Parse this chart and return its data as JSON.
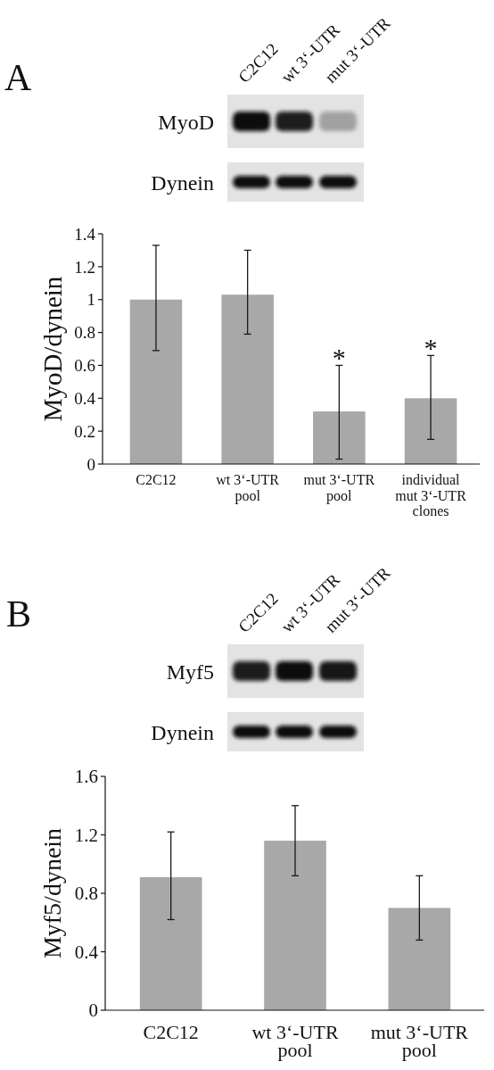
{
  "chart_data": [
    {
      "type": "bar",
      "title": "A",
      "ylabel": "MyoD/dynein",
      "categories": [
        "C2C12",
        "wt 3‘-UTR\npool",
        "mut 3‘-UTR\npool",
        "individual\nmut 3‘-UTR\nclones"
      ],
      "values": [
        1.0,
        1.03,
        0.32,
        0.4
      ],
      "errors": [
        [
          0.69,
          1.33
        ],
        [
          0.79,
          1.3
        ],
        [
          0.03,
          0.6
        ],
        [
          0.15,
          0.66
        ]
      ],
      "color": "#a8a8a8",
      "ylim": [
        0,
        1.4
      ],
      "yticks": [
        0,
        0.2,
        0.4,
        0.6,
        0.8,
        1,
        1.2,
        1.4
      ],
      "annotations": [
        "C2C12",
        "wt 3‘-UTR",
        "mut 3‘-UTR",
        "MyoD",
        "Dynein",
        {
          "text": "*",
          "x": "mut 3‘-UTR\npool",
          "y": 0.6
        },
        {
          "text": "*",
          "x": "individual\nmut 3‘-UTR\nclones",
          "y": 0.66
        }
      ]
    },
    {
      "type": "bar",
      "title": "B",
      "ylabel": "Myf5/dynein",
      "categories": [
        "C2C12",
        "wt 3‘-UTR\npool",
        "mut 3‘-UTR\npool"
      ],
      "values": [
        0.91,
        1.16,
        0.7
      ],
      "errors": [
        [
          0.62,
          1.22
        ],
        [
          0.92,
          1.4
        ],
        [
          0.48,
          0.92
        ]
      ],
      "color": "#a8a8a8",
      "ylim": [
        0,
        1.6
      ],
      "yticks": [
        0,
        0.4,
        0.8,
        1.2,
        1.6
      ],
      "annotations": [
        "C2C12",
        "wt 3‘-UTR",
        "mut 3‘-UTR",
        "Myf5",
        "Dynein"
      ]
    }
  ]
}
